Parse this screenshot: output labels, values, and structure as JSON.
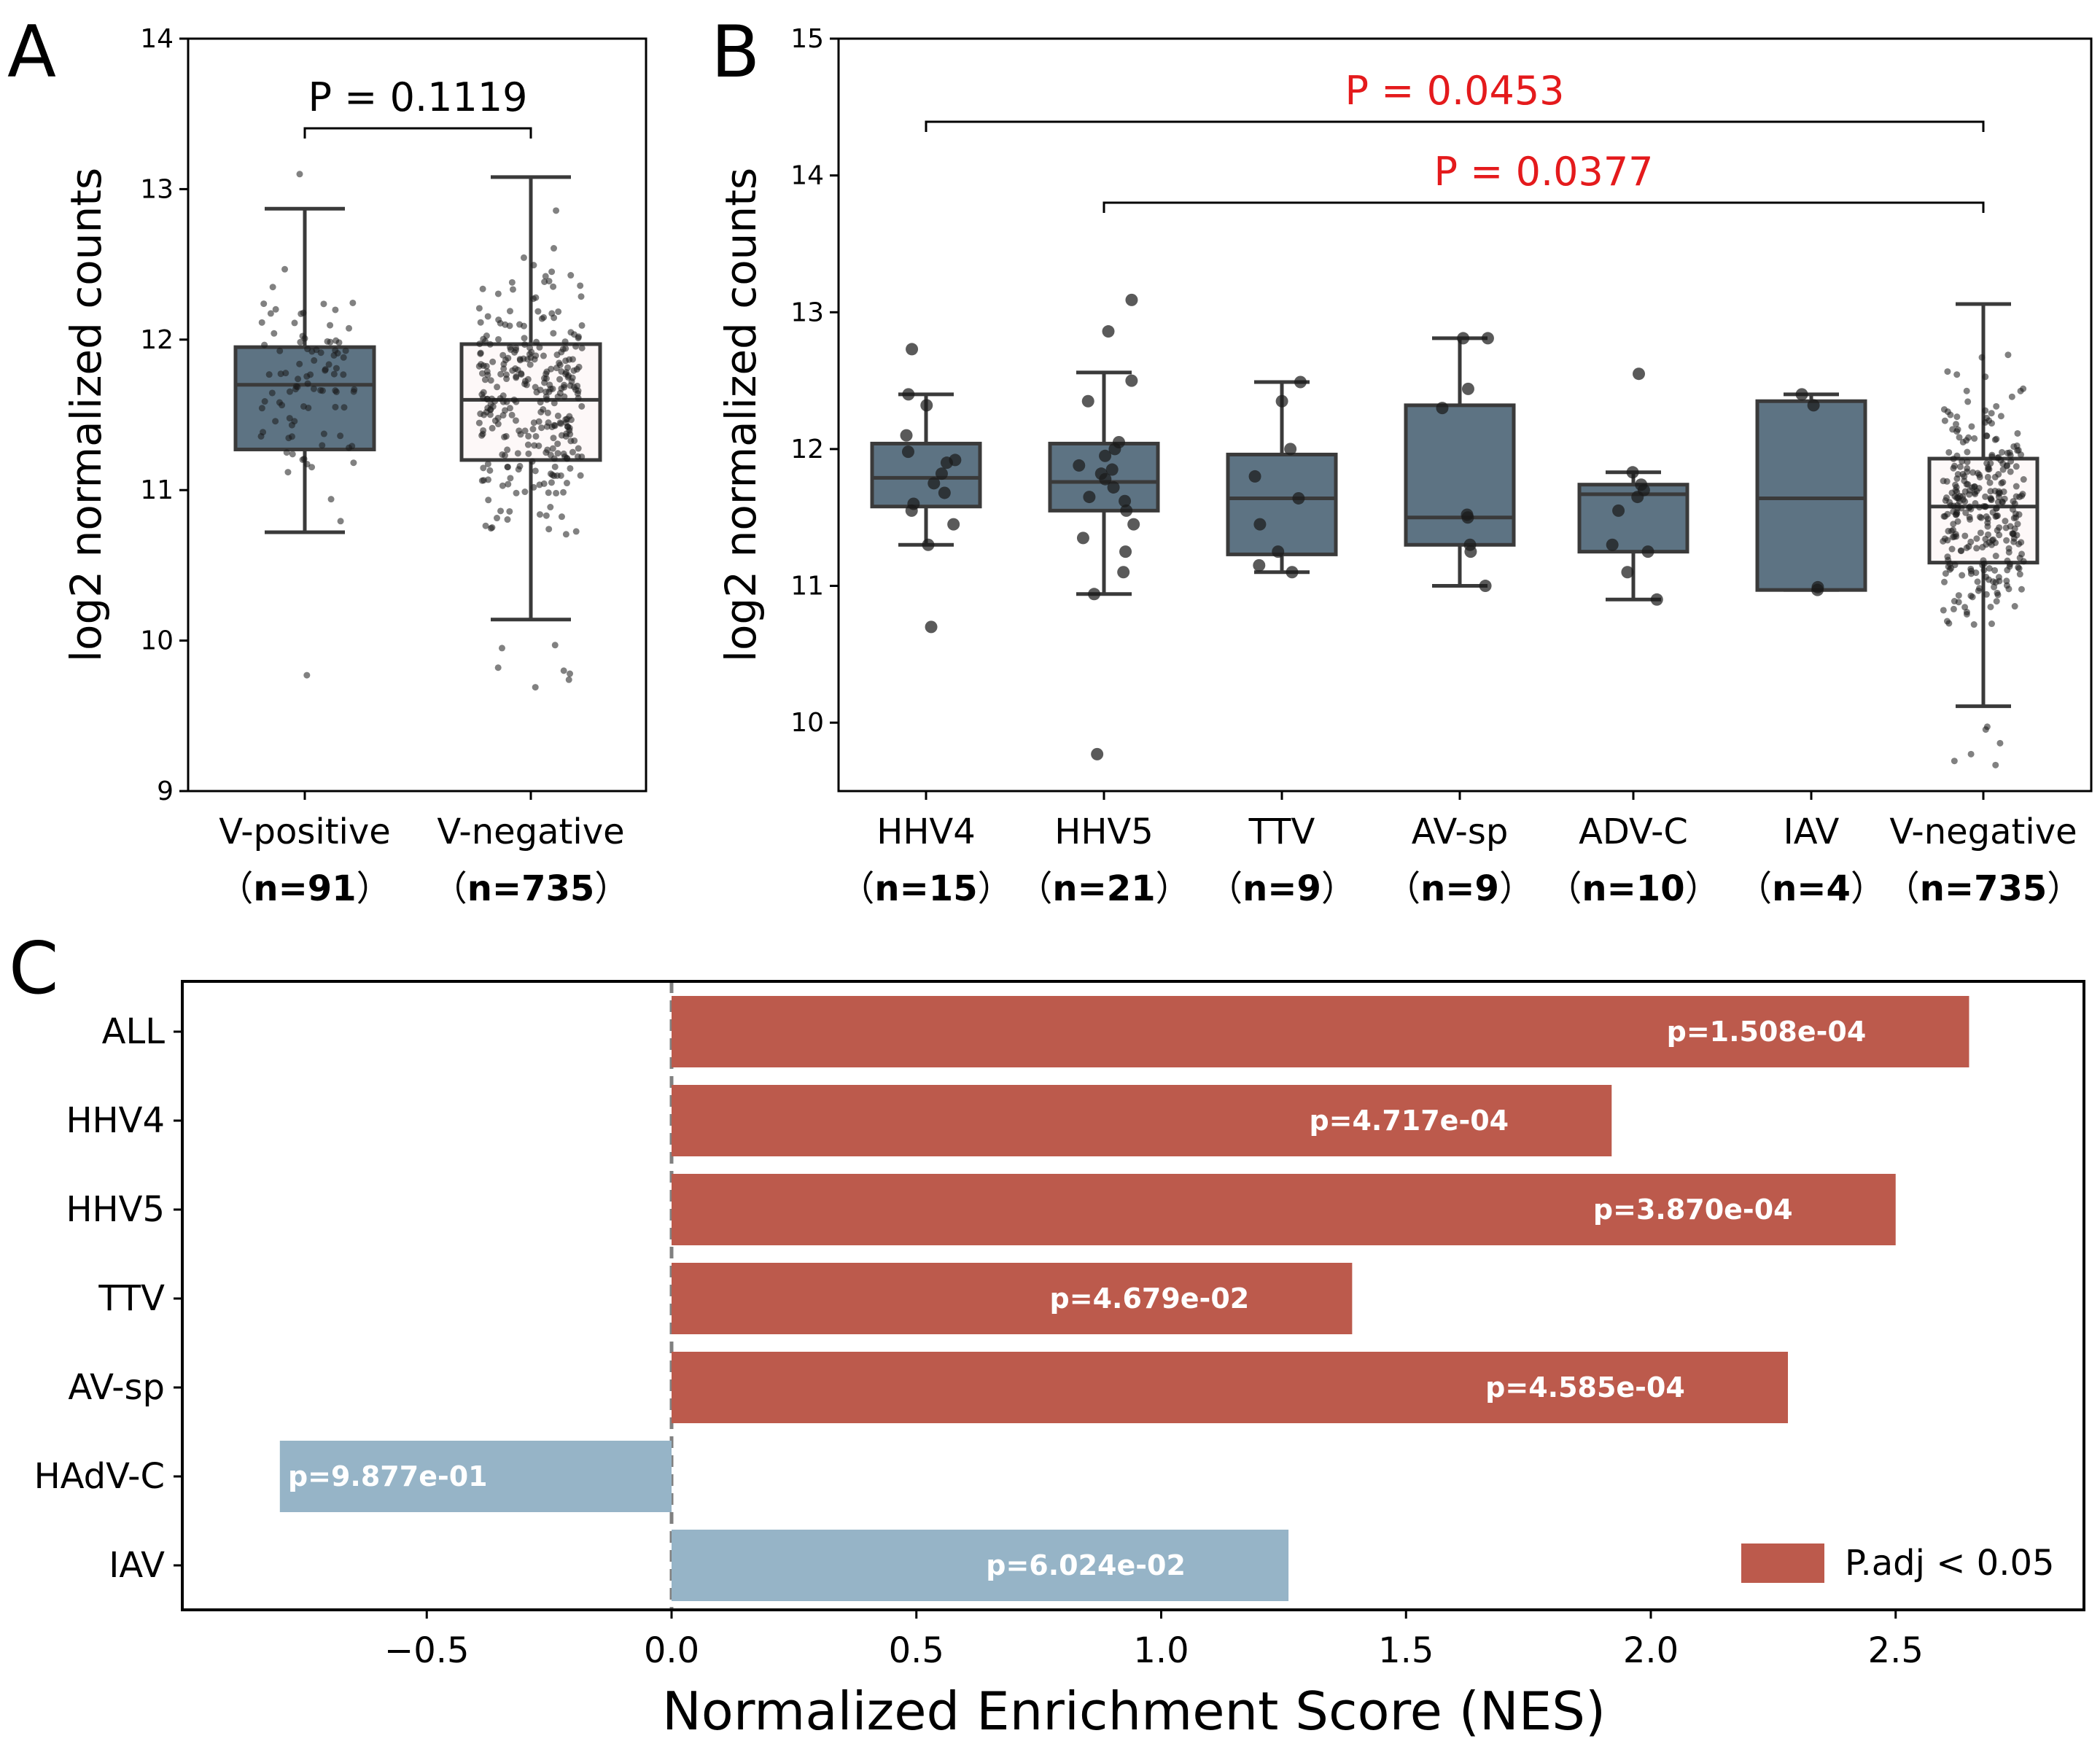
{
  "panels": {
    "A": "A",
    "B": "B",
    "C": "C"
  },
  "chart_data": [
    {
      "type": "box",
      "panel": "A",
      "ylabel": "log2 normalized counts",
      "ylim": [
        9,
        14
      ],
      "yticks": [
        "9",
        "10",
        "11",
        "12",
        "13",
        "14"
      ],
      "categories": [
        {
          "name": "V-positive",
          "n_label": "n=91",
          "q1": 11.27,
          "median": 11.7,
          "q3": 11.95,
          "whisker_low": 10.72,
          "whisker_high": 12.87,
          "fill": "#5d7383",
          "outliers": [
            9.77,
            13.1
          ],
          "jitter_count": 91
        },
        {
          "name": "V-negative",
          "n_label": "n=735",
          "q1": 11.2,
          "median": 11.6,
          "q3": 11.97,
          "whisker_low": 10.14,
          "whisker_high": 13.08,
          "fill": "#fdf8f8",
          "outliers": [
            9.97,
            9.78,
            9.95,
            9.74,
            9.82,
            9.69,
            9.8
          ],
          "jitter_count": 300
        }
      ],
      "annotations": [
        {
          "from": 0,
          "to": 1,
          "text": "P = 0.1119",
          "color": "#000000"
        }
      ]
    },
    {
      "type": "box",
      "panel": "B",
      "ylabel": "log2 normalized counts",
      "ylim": [
        9.5,
        15
      ],
      "yticks": [
        "10",
        "11",
        "12",
        "13",
        "14",
        "15"
      ],
      "categories": [
        {
          "name": "HHV4",
          "n_label": "n=15",
          "q1": 11.58,
          "median": 11.79,
          "q3": 12.04,
          "whisker_low": 11.3,
          "whisker_high": 12.4,
          "fill": "#5d7383",
          "points": [
            12.73,
            12.4,
            12.32,
            12.1,
            11.98,
            11.92,
            11.9,
            11.82,
            11.75,
            11.68,
            11.6,
            11.45,
            11.3,
            10.7,
            11.55
          ]
        },
        {
          "name": "HHV5",
          "n_label": "n=21",
          "q1": 11.55,
          "median": 11.76,
          "q3": 12.04,
          "whisker_low": 10.94,
          "whisker_high": 12.56,
          "fill": "#5d7383",
          "points": [
            13.09,
            12.86,
            12.5,
            12.35,
            12.05,
            12.0,
            11.95,
            11.88,
            11.82,
            11.78,
            11.72,
            11.65,
            11.55,
            11.45,
            11.35,
            11.25,
            11.1,
            10.94,
            9.77,
            11.62,
            11.85
          ]
        },
        {
          "name": "TTV",
          "n_label": "n=9",
          "q1": 11.23,
          "median": 11.64,
          "q3": 11.96,
          "whisker_low": 11.1,
          "whisker_high": 12.49,
          "fill": "#5d7383",
          "points": [
            12.49,
            12.35,
            12.0,
            11.8,
            11.64,
            11.45,
            11.25,
            11.15,
            11.1
          ]
        },
        {
          "name": "AV-sp",
          "n_label": "n=9",
          "q1": 11.3,
          "median": 11.5,
          "q3": 12.32,
          "whisker_low": 11.0,
          "whisker_high": 12.81,
          "fill": "#5d7383",
          "points": [
            12.81,
            12.81,
            12.44,
            12.3,
            11.5,
            11.52,
            11.3,
            11.25,
            11.0
          ]
        },
        {
          "name": "ADV-C",
          "n_label": "n=10",
          "q1": 11.25,
          "median": 11.67,
          "q3": 11.74,
          "whisker_low": 10.9,
          "whisker_high": 11.83,
          "fill": "#5d7383",
          "points": [
            12.55,
            11.83,
            11.74,
            11.7,
            11.65,
            11.55,
            11.3,
            11.25,
            11.1,
            10.9
          ]
        },
        {
          "name": "IAV",
          "n_label": "n=4",
          "q1": 10.97,
          "median": 11.64,
          "q3": 12.35,
          "whisker_low": 10.97,
          "whisker_high": 12.4,
          "fill": "#5d7383",
          "points": [
            12.4,
            12.32,
            10.99,
            10.97
          ]
        },
        {
          "name": "V-negative",
          "n_label": "n=735",
          "q1": 11.17,
          "median": 11.58,
          "q3": 11.93,
          "whisker_low": 10.12,
          "whisker_high": 13.06,
          "fill": "#fdf8f8",
          "outliers": [
            9.97,
            9.72,
            9.95,
            9.69,
            9.77,
            9.85
          ],
          "jitter_count": 300
        }
      ],
      "annotations": [
        {
          "from": 0,
          "to": 6,
          "text": "P = 0.0453",
          "color": "#e41a1c"
        },
        {
          "from": 1,
          "to": 6,
          "text": "P = 0.0377",
          "color": "#e41a1c"
        }
      ]
    },
    {
      "type": "barh",
      "panel": "C",
      "xlabel": "Normalized Enrichment Score (NES)",
      "xlim": [
        -1.0,
        2.8
      ],
      "xticks": [
        {
          "value": -0.5,
          "label": "−0.5"
        },
        {
          "value": 0.0,
          "label": "0.0"
        },
        {
          "value": 0.5,
          "label": "0.5"
        },
        {
          "value": 1.0,
          "label": "1.0"
        },
        {
          "value": 1.5,
          "label": "1.5"
        },
        {
          "value": 2.0,
          "label": "2.0"
        },
        {
          "value": 2.5,
          "label": "2.5"
        }
      ],
      "categories": [
        "ALL",
        "HHV4",
        "HHV5",
        "TTV",
        "AV-sp",
        "HAdV-C",
        "IAV"
      ],
      "values": [
        2.65,
        1.92,
        2.5,
        1.39,
        2.28,
        -0.8,
        1.26
      ],
      "labels": [
        "p=1.508e-04",
        "p=4.717e-04",
        "p=3.870e-04",
        "p=4.679e-02",
        "p=4.585e-04",
        "p=9.877e-01",
        "p=6.024e-02"
      ],
      "significant": [
        true,
        true,
        true,
        true,
        true,
        false,
        false
      ],
      "colors": {
        "significant": "#bc5a4c",
        "not_significant": "#96b4c7"
      },
      "legend": {
        "label": "P.adj < 0.05",
        "position": "lower-right"
      }
    }
  ]
}
